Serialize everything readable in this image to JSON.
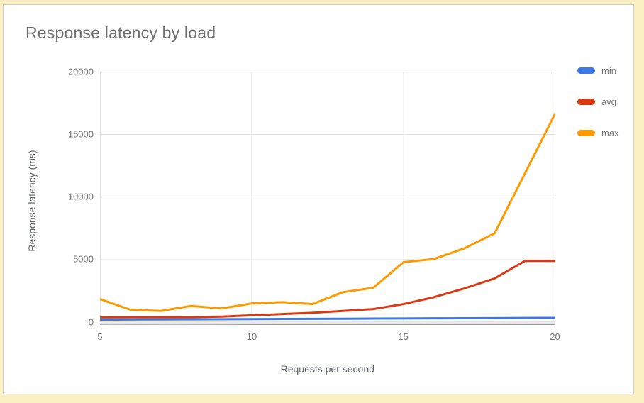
{
  "title": "Response latency by load",
  "colors": {
    "frame": "#faf0c3",
    "panel_border": "#cfcfcf",
    "title_text": "#6e6e6e",
    "tick_text": "#757575",
    "axis_title_text": "#5f6368",
    "gridline": "#e0e0e0",
    "plot_border": "#e0e0e0",
    "axis_baseline": "#3c3c3c",
    "series_min": "#3b78e8",
    "series_avg": "#dc3912",
    "series_max": "#ff9900"
  },
  "chart_data": {
    "type": "line",
    "title": "Response latency by load",
    "xlabel": "Requests per second",
    "ylabel": "Response latency (ms)",
    "x": [
      5,
      6,
      7,
      8,
      9,
      10,
      11,
      12,
      13,
      14,
      15,
      16,
      17,
      18,
      19,
      20
    ],
    "series": [
      {
        "name": "min",
        "color": "#3b78e8",
        "values": [
          200,
          210,
          220,
          230,
          240,
          250,
          260,
          270,
          280,
          290,
          300,
          310,
          320,
          330,
          340,
          350
        ]
      },
      {
        "name": "avg",
        "color": "#dc3912",
        "values": [
          380,
          390,
          390,
          400,
          450,
          550,
          650,
          750,
          900,
          1050,
          1450,
          2000,
          2700,
          3500,
          4900,
          4900
        ]
      },
      {
        "name": "max",
        "color": "#ff9900",
        "values": [
          1850,
          1000,
          900,
          1300,
          1100,
          1500,
          1600,
          1450,
          2400,
          2750,
          4800,
          5050,
          5900,
          7100,
          11900,
          16700
        ]
      }
    ],
    "xlim": [
      5,
      20
    ],
    "ylim": [
      0,
      20000
    ],
    "x_ticks": [
      5,
      10,
      15,
      20
    ],
    "y_ticks": [
      0,
      5000,
      10000,
      15000,
      20000
    ],
    "grid": true,
    "legend_position": "right"
  }
}
